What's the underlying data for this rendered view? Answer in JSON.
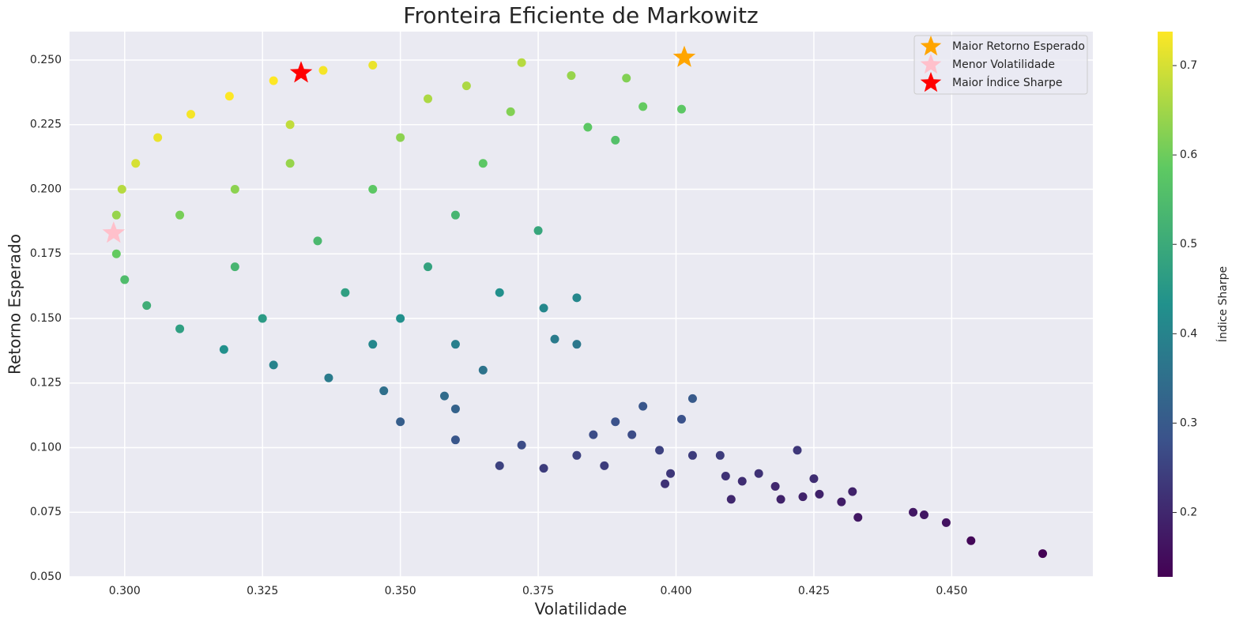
{
  "chart_data": {
    "type": "scatter",
    "title": "Fronteira Eficiente de Markowitz",
    "x_label": "Volatilidade",
    "y_label": "Retorno Esperado",
    "xlim": [
      0.29,
      0.4756
    ],
    "ylim": [
      0.05,
      0.261
    ],
    "xticks": [
      {
        "value": 0.3,
        "label": "0.300"
      },
      {
        "value": 0.325,
        "label": "0.325"
      },
      {
        "value": 0.35,
        "label": "0.350"
      },
      {
        "value": 0.375,
        "label": "0.375"
      },
      {
        "value": 0.4,
        "label": "0.400"
      },
      {
        "value": 0.425,
        "label": "0.425"
      },
      {
        "value": 0.45,
        "label": "0.450"
      }
    ],
    "yticks": [
      {
        "value": 0.05,
        "label": "0.050"
      },
      {
        "value": 0.075,
        "label": "0.075"
      },
      {
        "value": 0.1,
        "label": "0.100"
      },
      {
        "value": 0.125,
        "label": "0.125"
      },
      {
        "value": 0.15,
        "label": "0.150"
      },
      {
        "value": 0.175,
        "label": "0.175"
      },
      {
        "value": 0.2,
        "label": "0.200"
      },
      {
        "value": 0.225,
        "label": "0.225"
      },
      {
        "value": 0.25,
        "label": "0.250"
      }
    ],
    "grid": true,
    "legend": "upper right",
    "colorbar": {
      "label": "Índice Sharpe",
      "colormap": "viridis",
      "lim": [
        0.128,
        0.738
      ],
      "ticks": [
        0.2,
        0.3,
        0.4,
        0.5,
        0.6,
        0.7
      ]
    },
    "series": [
      {
        "marker": "circle",
        "x": [
          0.2985,
          0.2995,
          0.302,
          0.306,
          0.312,
          0.319,
          0.327,
          0.336,
          0.345,
          0.2985,
          0.3,
          0.304,
          0.31,
          0.318,
          0.327,
          0.337,
          0.347,
          0.31,
          0.32,
          0.33,
          0.32,
          0.335,
          0.345,
          0.35,
          0.355,
          0.34,
          0.35,
          0.355,
          0.36,
          0.36,
          0.365,
          0.358,
          0.33,
          0.325,
          0.345,
          0.362,
          0.365,
          0.368,
          0.37,
          0.372,
          0.381,
          0.391,
          0.394,
          0.401,
          0.389,
          0.384,
          0.375,
          0.382,
          0.376,
          0.378,
          0.382,
          0.403,
          0.401,
          0.394,
          0.389,
          0.376,
          0.368,
          0.382,
          0.387,
          0.397,
          0.403,
          0.399,
          0.398,
          0.408,
          0.409,
          0.412,
          0.41,
          0.415,
          0.418,
          0.419,
          0.422,
          0.423,
          0.425,
          0.426,
          0.43,
          0.432,
          0.433,
          0.443,
          0.445,
          0.449,
          0.4535,
          0.4665,
          0.36,
          0.372,
          0.385,
          0.35,
          0.36,
          0.392
        ],
        "values": [
          0.19,
          0.2,
          0.21,
          0.22,
          0.229,
          0.236,
          0.242,
          0.246,
          0.248,
          0.175,
          0.165,
          0.155,
          0.146,
          0.138,
          0.132,
          0.127,
          0.122,
          0.19,
          0.2,
          0.21,
          0.17,
          0.18,
          0.2,
          0.22,
          0.235,
          0.16,
          0.15,
          0.17,
          0.19,
          0.14,
          0.13,
          0.12,
          0.225,
          0.15,
          0.14,
          0.24,
          0.21,
          0.16,
          0.23,
          0.249,
          0.244,
          0.243,
          0.232,
          0.231,
          0.219,
          0.224,
          0.184,
          0.158,
          0.154,
          0.142,
          0.14,
          0.119,
          0.111,
          0.116,
          0.11,
          0.092,
          0.093,
          0.097,
          0.093,
          0.099,
          0.097,
          0.09,
          0.086,
          0.097,
          0.089,
          0.087,
          0.08,
          0.09,
          0.085,
          0.08,
          0.099,
          0.081,
          0.088,
          0.082,
          0.079,
          0.083,
          0.073,
          0.075,
          0.074,
          0.071,
          0.064,
          0.059,
          0.103,
          0.101,
          0.105,
          0.11,
          0.115,
          0.105
        ],
        "c": [
          0.64,
          0.67,
          0.7,
          0.72,
          0.73,
          0.74,
          0.74,
          0.73,
          0.72,
          0.59,
          0.55,
          0.51,
          0.47,
          0.43,
          0.4,
          0.38,
          0.35,
          0.61,
          0.63,
          0.64,
          0.53,
          0.54,
          0.58,
          0.63,
          0.66,
          0.47,
          0.43,
          0.48,
          0.53,
          0.39,
          0.36,
          0.34,
          0.68,
          0.46,
          0.41,
          0.66,
          0.58,
          0.43,
          0.62,
          0.67,
          0.64,
          0.62,
          0.59,
          0.58,
          0.56,
          0.58,
          0.49,
          0.41,
          0.41,
          0.38,
          0.37,
          0.3,
          0.28,
          0.29,
          0.28,
          0.24,
          0.25,
          0.25,
          0.24,
          0.25,
          0.24,
          0.23,
          0.22,
          0.24,
          0.22,
          0.21,
          0.2,
          0.22,
          0.2,
          0.19,
          0.23,
          0.19,
          0.21,
          0.19,
          0.18,
          0.19,
          0.17,
          0.17,
          0.17,
          0.16,
          0.14,
          0.13,
          0.29,
          0.27,
          0.27,
          0.31,
          0.32,
          0.27
        ]
      },
      {
        "name": "Maior Retorno Esperado",
        "marker": "star",
        "color": "orange",
        "x": [
          0.4015
        ],
        "values": [
          0.251
        ]
      },
      {
        "name": "Menor Volatilidade",
        "marker": "star",
        "color": "pink",
        "x": [
          0.298
        ],
        "values": [
          0.183
        ]
      },
      {
        "name": "Maior Índice Sharpe",
        "marker": "star",
        "color": "red",
        "x": [
          0.332
        ],
        "values": [
          0.245
        ]
      }
    ]
  }
}
